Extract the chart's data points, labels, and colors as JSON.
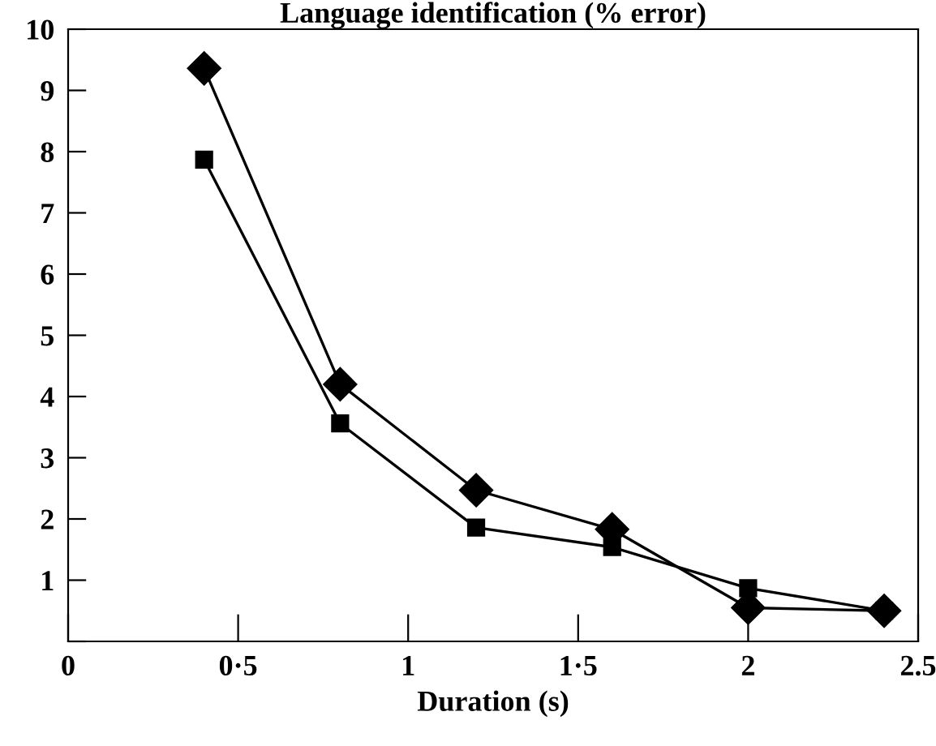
{
  "chart_data": {
    "type": "line",
    "title": "Language identification (% error)",
    "xlabel": "Duration (s)",
    "series": [
      {
        "color": "#000000",
        "marker": "diamond",
        "x": [
          0.4,
          0.8,
          1.2,
          1.6,
          2.0,
          2.4
        ],
        "values": [
          9.36,
          4.2,
          2.47,
          1.83,
          0.55,
          0.5
        ]
      },
      {
        "color": "#000000",
        "marker": "square",
        "x": [
          0.4,
          0.8,
          1.2,
          1.6,
          2.0,
          2.4
        ],
        "values": [
          7.87,
          3.56,
          1.86,
          1.54,
          0.87,
          0.5
        ]
      }
    ],
    "xlim": [
      0,
      2.5
    ],
    "xticks": [
      0,
      {
        "value": 0.5,
        "label": "0·5"
      },
      1,
      {
        "value": 1.5,
        "label": "1·5"
      },
      2,
      2.5
    ],
    "ylim": [
      0,
      10
    ],
    "yticks": [
      {
        "value": 0,
        "label": null
      },
      1,
      2,
      3,
      4,
      5,
      6,
      7,
      8,
      9,
      10
    ],
    "grid": false,
    "legend": false,
    "line_style": "solid"
  }
}
